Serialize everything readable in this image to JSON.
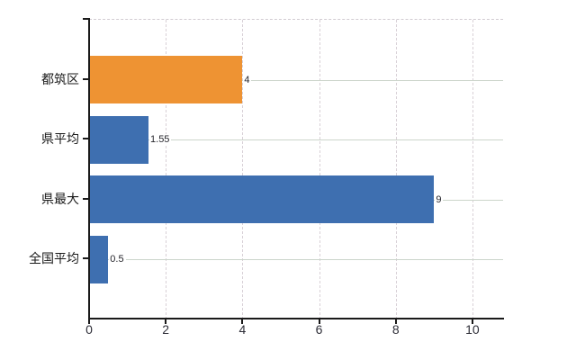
{
  "chart_data": {
    "type": "bar",
    "orientation": "horizontal",
    "title": "",
    "xlabel": "",
    "ylabel": "",
    "categories": [
      "都筑区",
      "県平均",
      "県最大",
      "全国平均"
    ],
    "values": [
      4,
      1.55,
      9,
      0.5
    ],
    "data_labels": [
      "4",
      "1.55",
      "9",
      "0.5"
    ],
    "bar_colors": [
      "#EE9333",
      "#3E6FB0",
      "#3E6FB0",
      "#3E6FB0"
    ],
    "x_ticks": [
      0,
      2,
      4,
      6,
      8,
      10
    ],
    "xlim": [
      0,
      10.8
    ],
    "grid": true,
    "legend": false
  },
  "colors": {
    "background": "#ffffff",
    "axis": "#1a1a1a",
    "h_gridline": "#ccd5cb",
    "v_gridline": "#d8d0d7",
    "plot_top_border": "#d2ccd2",
    "bar_blue": "#3E6FB0",
    "bar_orange": "#EE9333",
    "tick_label": "#2e2e38",
    "category_label": "#1a1a1a",
    "value_label": "#26262c"
  }
}
